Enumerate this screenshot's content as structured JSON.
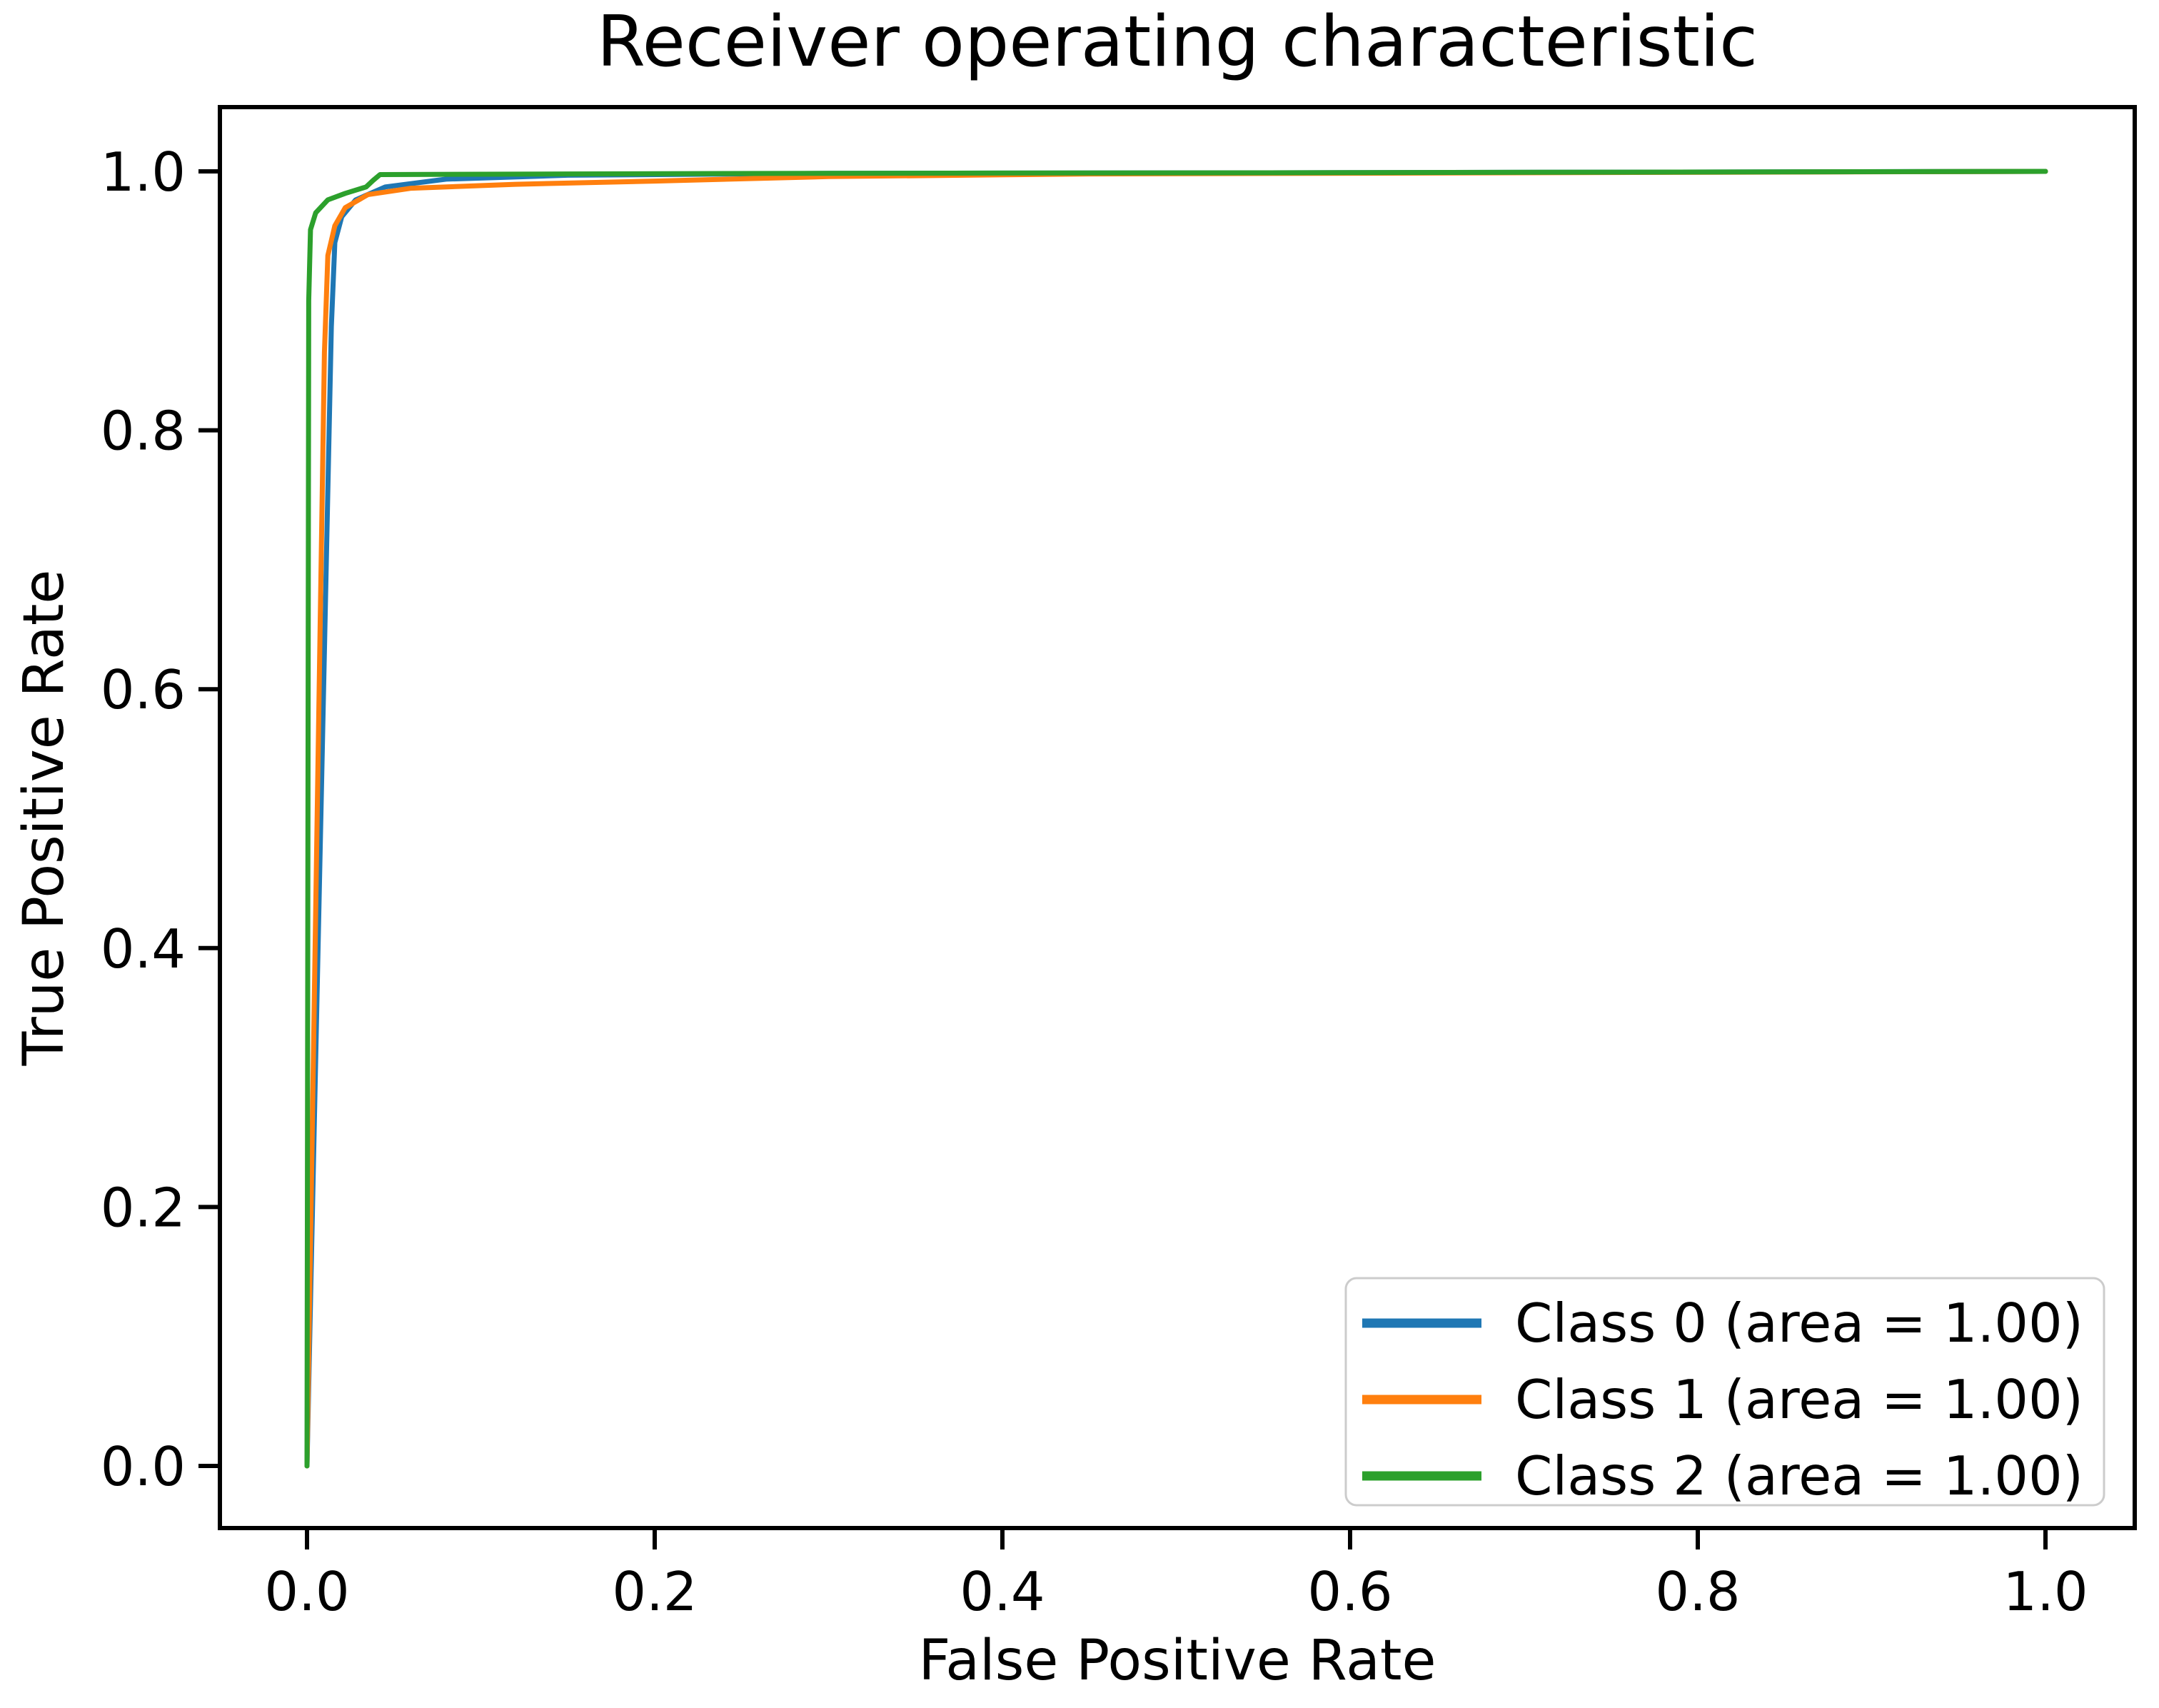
{
  "figure": {
    "background_color": "#ffffff",
    "frame_color": "#000000"
  },
  "chart_data": {
    "type": "line",
    "title": "Receiver operating characteristic",
    "xlabel": "False Positive Rate",
    "ylabel": "True Positive Rate",
    "xlim": [
      -0.05,
      1.05
    ],
    "ylim": [
      -0.05,
      1.05
    ],
    "grid": false,
    "legend_position": "lower right",
    "x_ticks": {
      "values": [
        0.0,
        0.2,
        0.4,
        0.6,
        0.8,
        1.0
      ],
      "labels": [
        "0.0",
        "0.2",
        "0.4",
        "0.6",
        "0.8",
        "1.0"
      ]
    },
    "y_ticks": {
      "values": [
        0.0,
        0.2,
        0.4,
        0.6,
        0.8,
        1.0
      ],
      "labels": [
        "0.0",
        "0.2",
        "0.4",
        "0.6",
        "0.8",
        "1.0"
      ]
    },
    "series": [
      {
        "name": "Class 0",
        "label": "Class 0 (area = 1.00)",
        "auc": "1.00",
        "color": "#1f77b4",
        "points": [
          [
            0,
            0
          ],
          [
            0.014,
            0.88
          ],
          [
            0.016,
            0.945
          ],
          [
            0.02,
            0.965
          ],
          [
            0.028,
            0.978
          ],
          [
            0.045,
            0.988
          ],
          [
            0.08,
            0.994
          ],
          [
            0.15,
            0.997
          ],
          [
            0.3,
            0.9985
          ],
          [
            0.6,
            0.999
          ],
          [
            1,
            1
          ]
        ]
      },
      {
        "name": "Class 1",
        "label": "Class 1 (area = 1.00)",
        "auc": "1.00",
        "color": "#ff7f0e",
        "points": [
          [
            0,
            0
          ],
          [
            0.01,
            0.86
          ],
          [
            0.012,
            0.935
          ],
          [
            0.016,
            0.958
          ],
          [
            0.022,
            0.972
          ],
          [
            0.035,
            0.982
          ],
          [
            0.06,
            0.987
          ],
          [
            0.12,
            0.99
          ],
          [
            0.2,
            0.9925
          ],
          [
            0.3,
            0.996
          ],
          [
            0.45,
            0.998
          ],
          [
            1,
            1
          ]
        ]
      },
      {
        "name": "Class 2",
        "label": "Class 2 (area = 1.00)",
        "auc": "1.00",
        "color": "#2ca02c",
        "points": [
          [
            0,
            0
          ],
          [
            0.001,
            0.9
          ],
          [
            0.002,
            0.955
          ],
          [
            0.005,
            0.968
          ],
          [
            0.012,
            0.978
          ],
          [
            0.022,
            0.983
          ],
          [
            0.034,
            0.988
          ],
          [
            0.038,
            0.993
          ],
          [
            0.042,
            0.9975
          ],
          [
            0.15,
            0.998
          ],
          [
            0.3,
            0.9985
          ],
          [
            0.6,
            0.999
          ],
          [
            1,
            1
          ]
        ]
      }
    ]
  }
}
